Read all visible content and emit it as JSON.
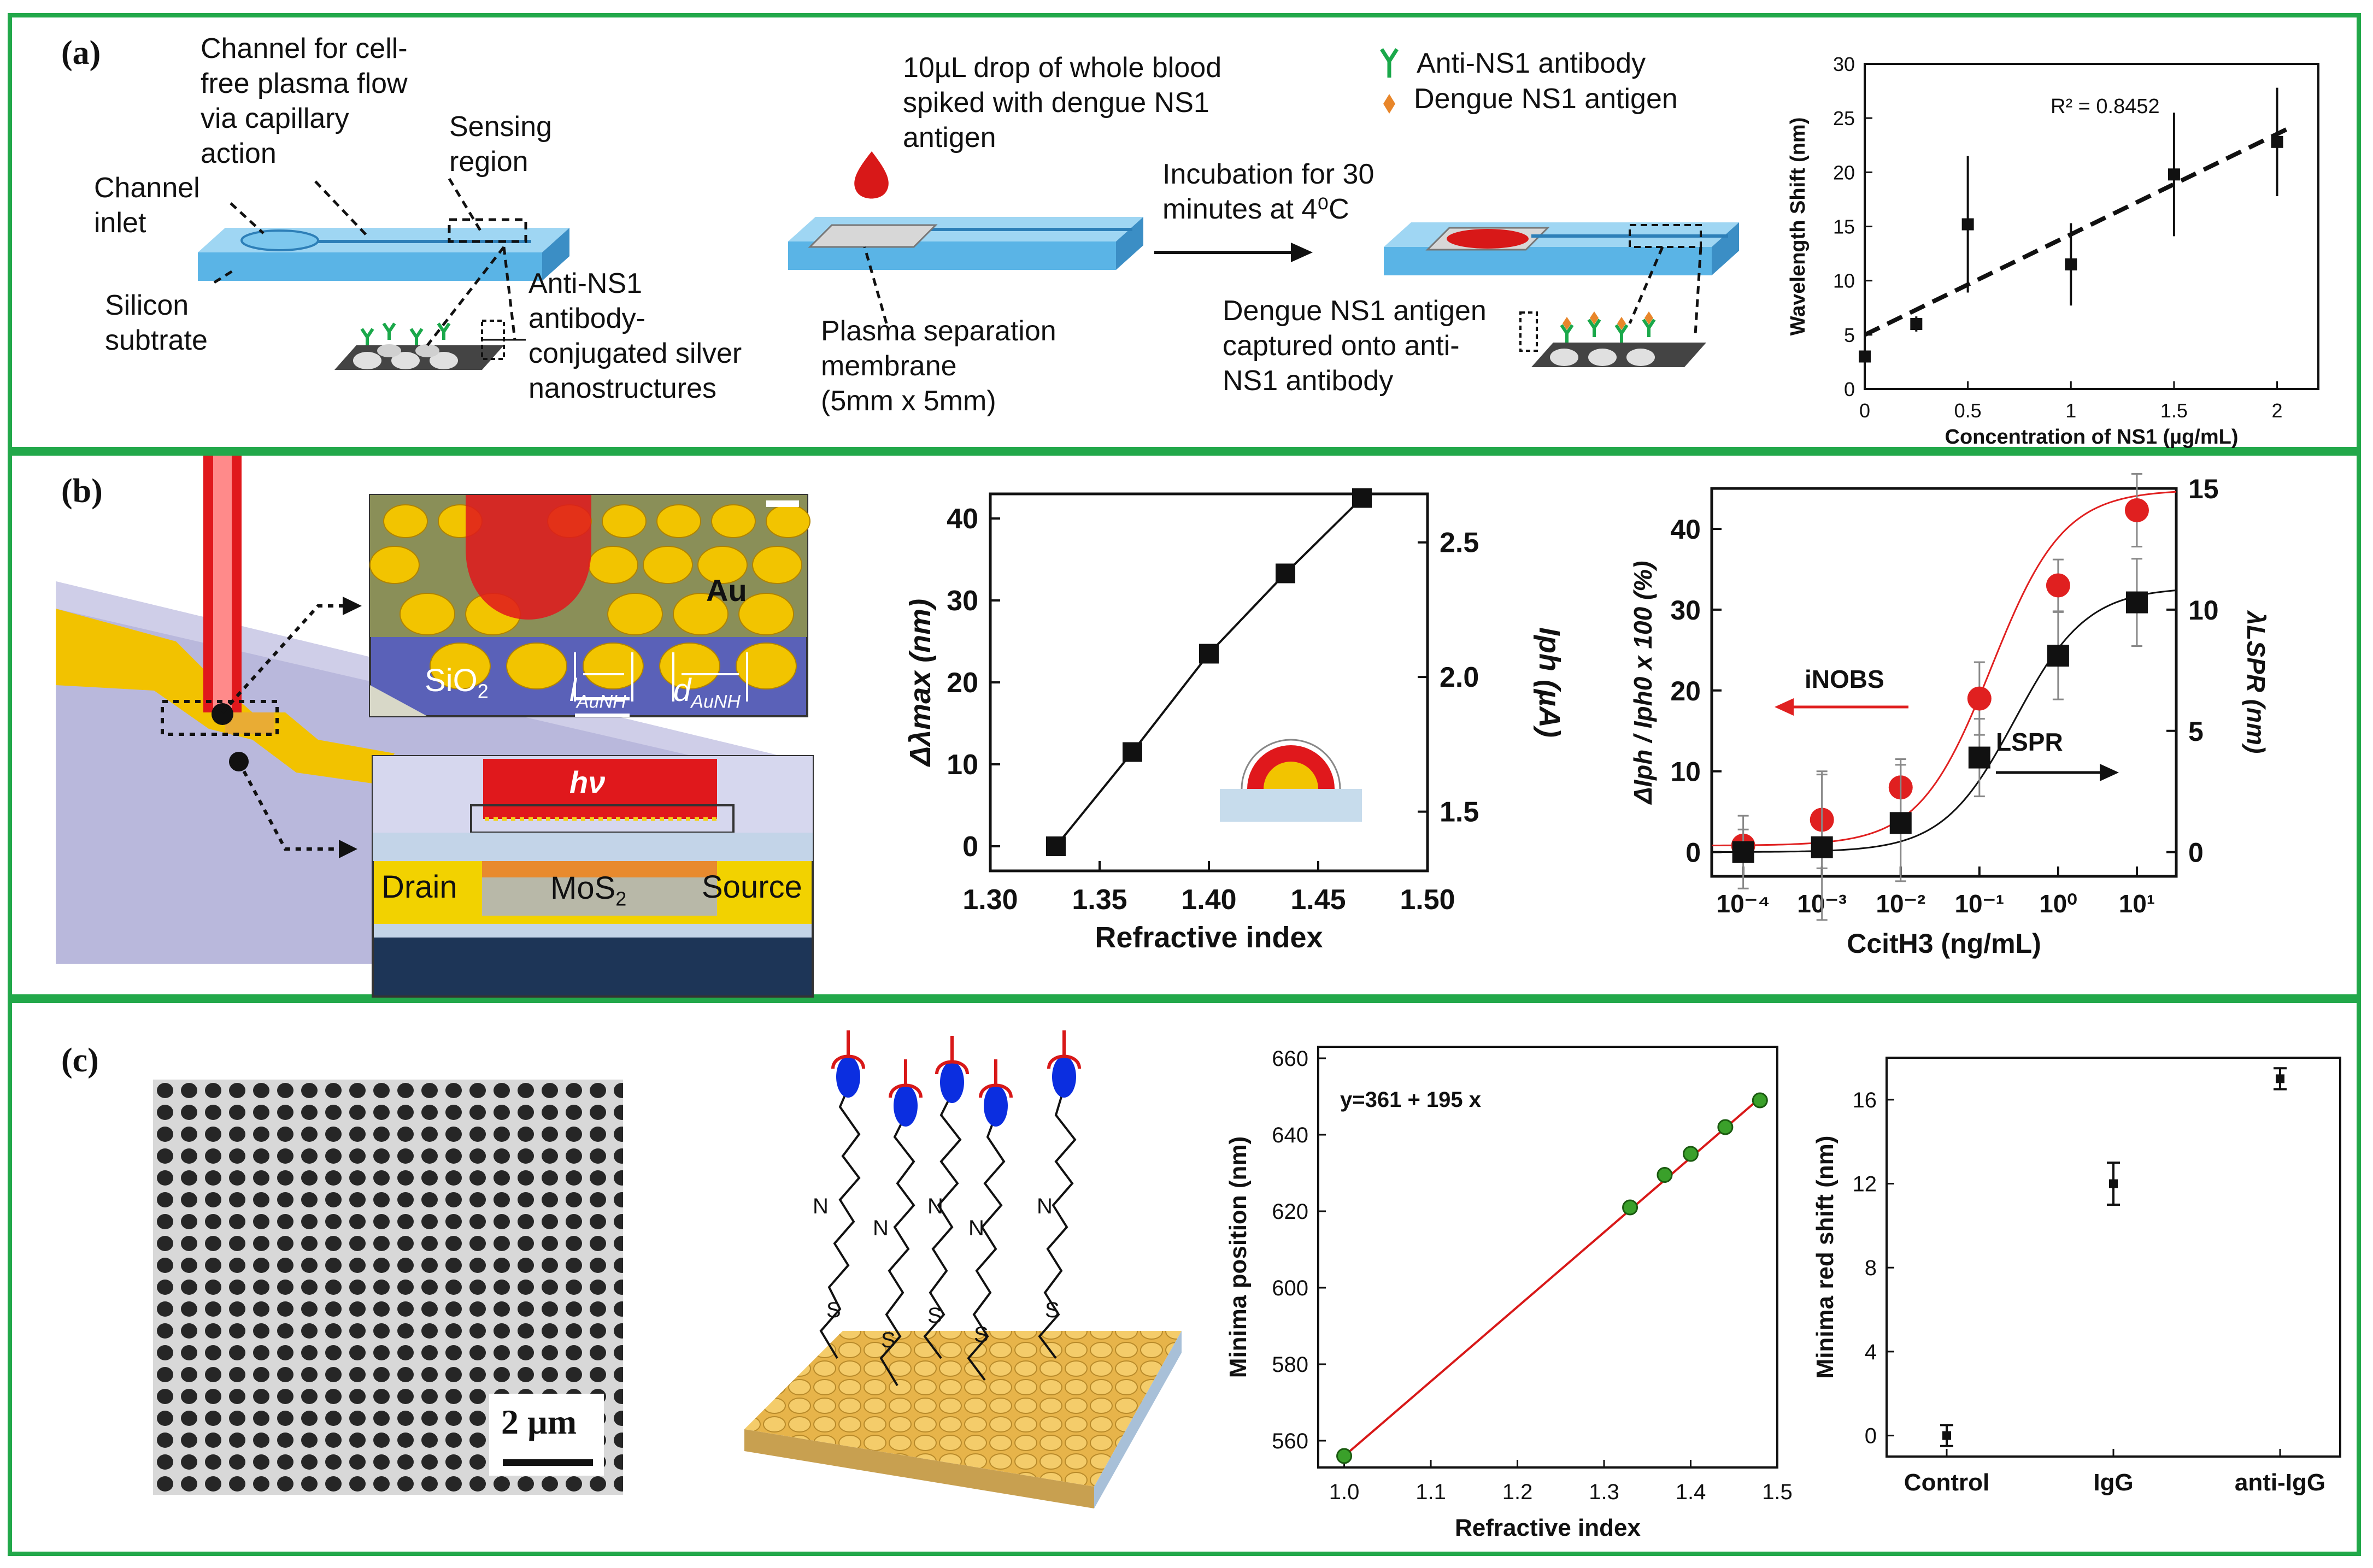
{
  "panel_a": {
    "label": "(a)",
    "text": {
      "channel_flow": "Channel for cell-\nfree plasma flow\nvia capillary\naction",
      "sensing_region": "Sensing\nregion",
      "channel_inlet": "Channel\ninlet",
      "silicon": "Silicon\nsubtrate",
      "antibody_silver": "Anti-NS1\nantibody-\nconjugated silver\nnanostructures",
      "drop": "10µL drop of whole blood\nspiked with dengue NS1\nantigen",
      "membrane": "Plasma separation\nmembrane\n(5mm x 5mm)",
      "incubation": "Incubation for 30\nminutes at 4⁰C",
      "legend_antibody": "Anti-NS1 antibody",
      "legend_antigen": "Dengue NS1 antigen",
      "captured": "Dengue NS1 antigen\ncaptured onto anti-\nNS1 antibody"
    },
    "icons": [
      "y-shaped-antibody-icon",
      "antigen-diamond-icon",
      "blood-drop-icon"
    ],
    "colors": {
      "chip": "#5ab4e6",
      "blood": "#d81818",
      "antigen": "#e8862a",
      "antibody": "#1aa84a"
    }
  },
  "panel_b": {
    "label": "(b)",
    "text": {
      "au": "Au",
      "sio2": "SiO",
      "sio2_sub": "2",
      "l": "l",
      "l_sub": "AuNH",
      "d": "d",
      "d_sub": "AuNH",
      "hv": "hν",
      "drain": "Drain",
      "mos2": "MoS",
      "mos2_sub": "2",
      "source": "Source"
    },
    "colors": {
      "gold": "#f2c200",
      "laser": "#e0181c",
      "substrate": "#b9b8dc"
    }
  },
  "panel_c": {
    "label": "(c)",
    "scale_bar": "2 µm",
    "molecule": {
      "n": "N",
      "s": "S"
    },
    "colors": {
      "gold": "#e7b44a",
      "ligand": "#0b2ee0",
      "ring": "#d81818"
    }
  },
  "chart_data": [
    {
      "id": "a-wavelength-shift",
      "type": "scatter",
      "title": "",
      "xlabel": "Concentration of NS1 (µg/mL)",
      "ylabel": "Wavelength Shift (nm)",
      "xlim": [
        0,
        2.2
      ],
      "ylim": [
        0,
        30
      ],
      "xticks": [
        "0",
        "0.5",
        "1",
        "1.5",
        "2"
      ],
      "yticks": [
        "0",
        "5",
        "10",
        "15",
        "20",
        "25",
        "30"
      ],
      "x": [
        0,
        0.25,
        0.5,
        1,
        1.5,
        2
      ],
      "y": [
        3,
        6,
        15.2,
        11.5,
        19.8,
        22.8
      ],
      "err": [
        0.5,
        0.7,
        6.3,
        3.8,
        5.7,
        5
      ],
      "fit": {
        "x": [
          0,
          2.05
        ],
        "y": [
          5,
          24
        ],
        "style": "dashed"
      },
      "annotation": "R² = 0.8452"
    },
    {
      "id": "b-refractive",
      "type": "line",
      "xlabel": "Refractive index",
      "ylabel": "Δλmax (nm)",
      "ylabel_right": "Iph (µA)",
      "xlim": [
        1.3,
        1.5
      ],
      "ylim": [
        -3,
        43
      ],
      "ylim_right": [
        1.28,
        2.68
      ],
      "xticks": [
        "1.30",
        "1.35",
        "1.40",
        "1.45",
        "1.50"
      ],
      "yticks": [
        "0",
        "10",
        "20",
        "30",
        "40"
      ],
      "yticks_right": [
        "1.5",
        "2.0",
        "2.5"
      ],
      "x": [
        1.33,
        1.365,
        1.4,
        1.435,
        1.47
      ],
      "y": [
        0,
        11.5,
        23.5,
        33.3,
        42.5
      ]
    },
    {
      "id": "b-concentration",
      "type": "scatter",
      "xlabel": "CcitH3 (ng/mL)",
      "ylabel": "ΔIph / Iph0 x 100 (%)",
      "ylabel_right": "λLSPR (nm)",
      "xscale": "log",
      "xlim_log": [
        -4.4,
        1.5
      ],
      "ylim": [
        -3,
        45
      ],
      "ylim_right": [
        -1,
        15
      ],
      "xticks": [
        "10⁻⁴",
        "10⁻³",
        "10⁻²",
        "10⁻¹",
        "10⁰",
        "10¹"
      ],
      "yticks": [
        "0",
        "10",
        "20",
        "30",
        "40"
      ],
      "yticks_right": [
        "0",
        "5",
        "10",
        "15"
      ],
      "series": [
        {
          "name": "iNOBS",
          "axis": "left",
          "color": "#e02020",
          "x_log": [
            -4,
            -3,
            -2,
            -1,
            0,
            1
          ],
          "y": [
            0.8,
            4,
            8,
            19,
            33,
            42.3
          ],
          "err": [
            2,
            6,
            3.5,
            4.5,
            3.2,
            4.5
          ]
        },
        {
          "name": "LSPR",
          "axis": "right",
          "color": "#111111",
          "x_log": [
            -4,
            -3,
            -2,
            -1,
            0,
            1
          ],
          "y": [
            0,
            0.2,
            1.2,
            3.9,
            8.1,
            10.3
          ],
          "err": [
            1.5,
            3,
            2.4,
            1.6,
            1.8,
            1.8
          ]
        }
      ],
      "labels": {
        "inobs": "iNOBS",
        "lspr": "LSPR"
      }
    },
    {
      "id": "c-minima-position",
      "type": "line",
      "xlabel": "Refractive index",
      "ylabel": "Minima position (nm)",
      "xlim": [
        0.97,
        1.5
      ],
      "ylim": [
        553,
        663
      ],
      "xticks": [
        "1.0",
        "1.1",
        "1.2",
        "1.3",
        "1.4",
        "1.5"
      ],
      "yticks": [
        "560",
        "580",
        "600",
        "620",
        "640",
        "660"
      ],
      "x": [
        1.0,
        1.33,
        1.37,
        1.4,
        1.44,
        1.48
      ],
      "y": [
        556,
        621,
        629.5,
        635,
        642,
        649
      ],
      "annotation": "y=361 + 195 x"
    },
    {
      "id": "c-red-shift",
      "type": "scatter",
      "xlabel": "",
      "ylabel": "Minima red shift (nm)",
      "categories": [
        "Control",
        "IgG",
        "anti-IgG"
      ],
      "ylim": [
        -1,
        18
      ],
      "yticks": [
        "0",
        "4",
        "8",
        "12",
        "16"
      ],
      "values": [
        0,
        12,
        17
      ],
      "err": [
        0.5,
        1,
        0.5
      ]
    }
  ]
}
